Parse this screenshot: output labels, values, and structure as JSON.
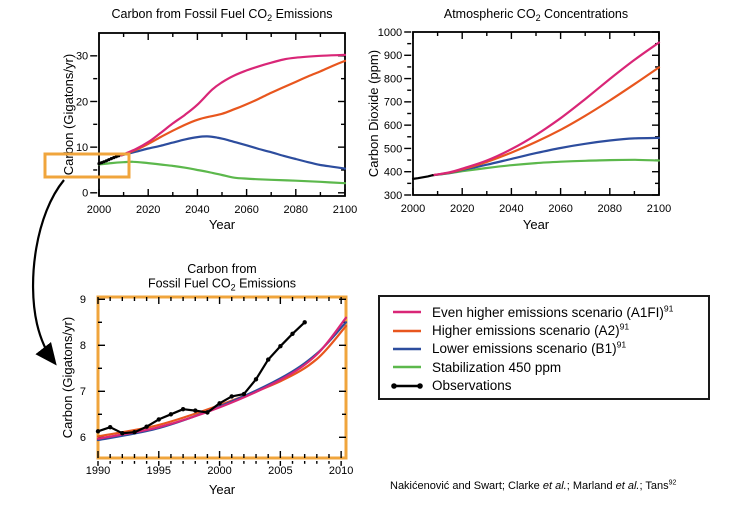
{
  "colors": {
    "a1fi": "#d92677",
    "a2": "#e8561e",
    "b1": "#2d4d9e",
    "stab450": "#5cb84c",
    "observations": "#000000",
    "highlight": "#f0a53c",
    "frame": "#000000"
  },
  "chart_data": [
    {
      "id": "emissions",
      "type": "line",
      "title_lines": [
        [
          {
            "t": "Carbon from Fossil Fuel CO"
          },
          {
            "t": "2",
            "sub": true
          },
          {
            "t": " Emissions"
          }
        ]
      ],
      "xlabel": "Year",
      "ylabel": "Carbon (Gigatons/yr)",
      "x_range": [
        2000,
        2100
      ],
      "y_range": [
        -0.7,
        35.0
      ],
      "x_ticks": [
        2000,
        2020,
        2040,
        2060,
        2080,
        2100
      ],
      "x_minor_ticks": [
        2010,
        2030,
        2050,
        2070,
        2090
      ],
      "y_ticks": [
        0,
        10,
        20,
        30
      ],
      "y_minor_ticks": [
        5,
        15,
        25
      ],
      "series": [
        {
          "key": "stab450",
          "name": "Stabilization 450 ppm",
          "smooth": true,
          "markers": false,
          "points": [
            [
              2000,
              6.2
            ],
            [
              2005,
              6.5
            ],
            [
              2010,
              6.7
            ],
            [
              2014,
              6.8
            ],
            [
              2020,
              6.5
            ],
            [
              2025,
              6.2
            ],
            [
              2030,
              5.9
            ],
            [
              2035,
              5.5
            ],
            [
              2040,
              5.0
            ],
            [
              2045,
              4.5
            ],
            [
              2050,
              3.9
            ],
            [
              2055,
              3.3
            ],
            [
              2060,
              3.1
            ],
            [
              2065,
              2.95
            ],
            [
              2070,
              2.85
            ],
            [
              2080,
              2.65
            ],
            [
              2090,
              2.4
            ],
            [
              2100,
              2.1
            ]
          ]
        },
        {
          "key": "b1",
          "name": "Lower emissions scenario (B1)",
          "smooth": true,
          "markers": false,
          "points": [
            [
              2009,
              8.2
            ],
            [
              2015,
              9.0
            ],
            [
              2020,
              9.7
            ],
            [
              2025,
              10.3
            ],
            [
              2030,
              11.0
            ],
            [
              2035,
              11.7
            ],
            [
              2040,
              12.2
            ],
            [
              2044,
              12.35
            ],
            [
              2048,
              12.1
            ],
            [
              2052,
              11.6
            ],
            [
              2056,
              11.0
            ],
            [
              2060,
              10.4
            ],
            [
              2065,
              9.6
            ],
            [
              2070,
              8.9
            ],
            [
              2075,
              8.1
            ],
            [
              2080,
              7.4
            ],
            [
              2085,
              6.7
            ],
            [
              2090,
              6.1
            ],
            [
              2095,
              5.7
            ],
            [
              2100,
              5.3
            ]
          ]
        },
        {
          "key": "a2",
          "name": "Higher emissions scenario (A2)",
          "smooth": true,
          "markers": false,
          "points": [
            [
              2009,
              8.2
            ],
            [
              2015,
              9.4
            ],
            [
              2020,
              10.7
            ],
            [
              2025,
              12.2
            ],
            [
              2030,
              13.6
            ],
            [
              2035,
              14.9
            ],
            [
              2040,
              16.0
            ],
            [
              2045,
              16.7
            ],
            [
              2050,
              17.3
            ],
            [
              2055,
              18.3
            ],
            [
              2060,
              19.4
            ],
            [
              2065,
              20.6
            ],
            [
              2070,
              21.9
            ],
            [
              2075,
              23.1
            ],
            [
              2080,
              24.3
            ],
            [
              2085,
              25.5
            ],
            [
              2090,
              26.6
            ],
            [
              2095,
              27.8
            ],
            [
              2100,
              28.9
            ]
          ]
        },
        {
          "key": "a1fi",
          "name": "Even higher emissions scenario (A1FI)",
          "smooth": true,
          "markers": false,
          "points": [
            [
              2009,
              8.2
            ],
            [
              2015,
              9.6
            ],
            [
              2020,
              11.1
            ],
            [
              2025,
              13.1
            ],
            [
              2030,
              15.2
            ],
            [
              2035,
              17.1
            ],
            [
              2040,
              19.3
            ],
            [
              2046,
              22.6
            ],
            [
              2050,
              24.2
            ],
            [
              2055,
              25.7
            ],
            [
              2060,
              26.8
            ],
            [
              2065,
              27.7
            ],
            [
              2070,
              28.5
            ],
            [
              2075,
              29.2
            ],
            [
              2080,
              29.6
            ],
            [
              2090,
              30.0
            ],
            [
              2100,
              30.2
            ]
          ]
        },
        {
          "key": "observations",
          "name": "Observations",
          "smooth": false,
          "markers": true,
          "marker_r": 1.6,
          "points": [
            [
              2000,
              6.4
            ],
            [
              2001,
              6.6
            ],
            [
              2002,
              6.8
            ],
            [
              2003,
              7.0
            ],
            [
              2004,
              7.25
            ],
            [
              2005,
              7.5
            ],
            [
              2006,
              7.7
            ],
            [
              2007,
              7.9
            ],
            [
              2008,
              8.1
            ]
          ]
        }
      ]
    },
    {
      "id": "concentrations",
      "type": "line",
      "title_lines": [
        [
          {
            "t": "Atmospheric CO"
          },
          {
            "t": "2",
            "sub": true
          },
          {
            "t": " Concentrations"
          }
        ]
      ],
      "xlabel": "Year",
      "ylabel": "Carbon Dioxide (ppm)",
      "x_range": [
        2000,
        2100
      ],
      "y_range": [
        300,
        1000
      ],
      "x_ticks": [
        2000,
        2020,
        2040,
        2060,
        2080,
        2100
      ],
      "x_minor_ticks": [
        2010,
        2030,
        2050,
        2070,
        2090
      ],
      "y_ticks": [
        300,
        400,
        500,
        600,
        700,
        800,
        900,
        1000
      ],
      "y_minor_ticks": [
        350,
        450,
        550,
        650,
        750,
        850,
        950
      ],
      "series": [
        {
          "key": "stab450",
          "name": "Stabilization 450 ppm",
          "smooth": true,
          "markers": false,
          "points": [
            [
              2008,
              385
            ],
            [
              2015,
              394
            ],
            [
              2020,
              402
            ],
            [
              2030,
              416
            ],
            [
              2040,
              428
            ],
            [
              2050,
              437
            ],
            [
              2060,
              443
            ],
            [
              2070,
              447
            ],
            [
              2080,
              450
            ],
            [
              2090,
              451
            ],
            [
              2100,
              448
            ]
          ]
        },
        {
          "key": "b1",
          "name": "Lower emissions scenario (B1)",
          "smooth": true,
          "markers": false,
          "points": [
            [
              2008,
              385
            ],
            [
              2015,
              395
            ],
            [
              2020,
              407
            ],
            [
              2030,
              430
            ],
            [
              2040,
              455
            ],
            [
              2050,
              480
            ],
            [
              2060,
              502
            ],
            [
              2070,
              520
            ],
            [
              2080,
              534
            ],
            [
              2090,
              543
            ],
            [
              2100,
              545
            ]
          ]
        },
        {
          "key": "a2",
          "name": "Higher emissions scenario (A2)",
          "smooth": true,
          "markers": false,
          "points": [
            [
              2008,
              385
            ],
            [
              2015,
              396
            ],
            [
              2020,
              410
            ],
            [
              2030,
              442
            ],
            [
              2040,
              482
            ],
            [
              2050,
              528
            ],
            [
              2060,
              580
            ],
            [
              2070,
              640
            ],
            [
              2080,
              706
            ],
            [
              2090,
              776
            ],
            [
              2100,
              848
            ]
          ]
        },
        {
          "key": "a1fi",
          "name": "Even higher emissions scenario (A1FI)",
          "smooth": true,
          "markers": false,
          "points": [
            [
              2008,
              385
            ],
            [
              2015,
              398
            ],
            [
              2020,
              413
            ],
            [
              2030,
              448
            ],
            [
              2040,
              497
            ],
            [
              2050,
              558
            ],
            [
              2060,
              630
            ],
            [
              2070,
              712
            ],
            [
              2080,
              798
            ],
            [
              2090,
              880
            ],
            [
              2100,
              955
            ]
          ]
        },
        {
          "key": "observations",
          "name": "Observations",
          "smooth": false,
          "markers": false,
          "points": [
            [
              2000,
              369
            ],
            [
              2002,
              372
            ],
            [
              2004,
              376
            ],
            [
              2006,
              380
            ],
            [
              2008,
              385
            ]
          ]
        }
      ]
    },
    {
      "id": "emissions-zoom",
      "type": "line",
      "title_lines": [
        [
          {
            "t": "Carbon from"
          }
        ],
        [
          {
            "t": "Fossil Fuel CO"
          },
          {
            "t": "2",
            "sub": true
          },
          {
            "t": " Emissions"
          }
        ]
      ],
      "xlabel": "Year",
      "ylabel": "Carbon (Gigatons/yr)",
      "x_range": [
        1990,
        2010.4
      ],
      "y_range": [
        5.55,
        9.05
      ],
      "x_ticks": [
        1990,
        1995,
        2000,
        2005,
        2010
      ],
      "x_minor_ticks": [
        1991,
        1992,
        1993,
        1994,
        1996,
        1997,
        1998,
        1999,
        2001,
        2002,
        2003,
        2004,
        2006,
        2007,
        2008,
        2009
      ],
      "y_ticks": [
        6,
        7,
        8,
        9
      ],
      "y_minor_ticks": [
        6.5,
        7.5,
        8.5
      ],
      "series": [
        {
          "key": "a2",
          "name": "Higher emissions scenario (A2)",
          "smooth": true,
          "markers": false,
          "points": [
            [
              1990,
              6.02
            ],
            [
              1995,
              6.27
            ],
            [
              2000,
              6.7
            ],
            [
              2005,
              7.22
            ],
            [
              2008,
              7.7
            ],
            [
              2010.4,
              8.42
            ]
          ]
        },
        {
          "key": "b1",
          "name": "Lower emissions scenario (B1)",
          "smooth": true,
          "markers": false,
          "points": [
            [
              1990,
              5.94
            ],
            [
              1995,
              6.2
            ],
            [
              2000,
              6.67
            ],
            [
              2005,
              7.28
            ],
            [
              2008,
              7.82
            ],
            [
              2010.4,
              8.5
            ]
          ]
        },
        {
          "key": "a1fi",
          "name": "Even higher emissions scenario (A1FI)",
          "smooth": true,
          "markers": false,
          "points": [
            [
              1990,
              5.97
            ],
            [
              1995,
              6.22
            ],
            [
              2000,
              6.65
            ],
            [
              2005,
              7.25
            ],
            [
              2008,
              7.8
            ],
            [
              2010.4,
              8.6
            ]
          ]
        },
        {
          "key": "observations",
          "name": "Observations",
          "smooth": false,
          "markers": true,
          "marker_r": 2.2,
          "points": [
            [
              1990,
              6.13
            ],
            [
              1991,
              6.22
            ],
            [
              1992,
              6.09
            ],
            [
              1993,
              6.11
            ],
            [
              1994,
              6.23
            ],
            [
              1995,
              6.39
            ],
            [
              1996,
              6.5
            ],
            [
              1997,
              6.61
            ],
            [
              1998,
              6.58
            ],
            [
              1999,
              6.54
            ],
            [
              2000,
              6.74
            ],
            [
              2001,
              6.89
            ],
            [
              2002,
              6.94
            ],
            [
              2003,
              7.26
            ],
            [
              2004,
              7.69
            ],
            [
              2005,
              7.98
            ],
            [
              2006,
              8.25
            ],
            [
              2007,
              8.5
            ]
          ]
        }
      ]
    }
  ],
  "legend": {
    "items": [
      {
        "key": "a1fi",
        "sample": "line",
        "parts": [
          {
            "t": "Even higher emissions scenario (A1FI)"
          },
          {
            "t": "91",
            "sup": true
          }
        ]
      },
      {
        "key": "a2",
        "sample": "line",
        "parts": [
          {
            "t": "Higher emissions scenario (A2)"
          },
          {
            "t": "91",
            "sup": true
          }
        ]
      },
      {
        "key": "b1",
        "sample": "line",
        "parts": [
          {
            "t": "Lower emissions scenario (B1)"
          },
          {
            "t": "91",
            "sup": true
          }
        ]
      },
      {
        "key": "stab450",
        "sample": "line",
        "parts": [
          {
            "t": "Stabilization 450 ppm"
          }
        ]
      },
      {
        "key": "observations",
        "sample": "line-dots",
        "parts": [
          {
            "t": "Observations"
          }
        ]
      }
    ]
  },
  "citation": {
    "parts": [
      {
        "t": "Nakićenović and Swart; Clarke "
      },
      {
        "t": "et al.",
        "i": true
      },
      {
        "t": "; Marland "
      },
      {
        "t": "et al.",
        "i": true
      },
      {
        "t": "; Tans"
      },
      {
        "t": "92",
        "sup": true
      }
    ]
  }
}
